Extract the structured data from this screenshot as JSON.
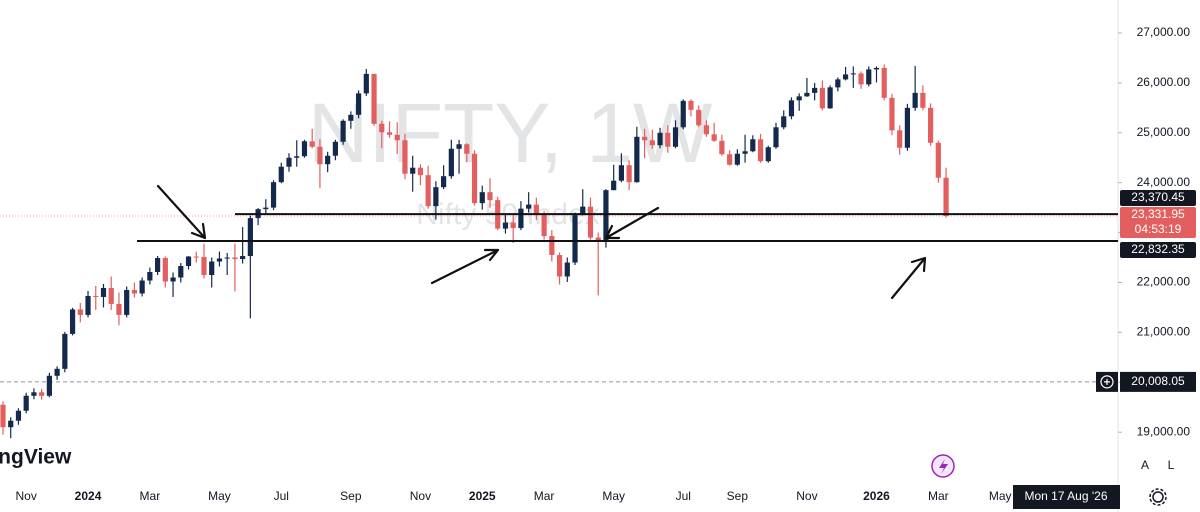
{
  "chart_data": {
    "type": "candlestick",
    "title": "NIFTY, 1W",
    "subtitle": "Nifty 50 Index",
    "brand": "TradingView",
    "categories": [
      null,
      null,
      null,
      "Nov",
      null,
      null,
      null,
      null,
      null,
      null,
      null,
      "2024",
      null,
      null,
      null,
      null,
      null,
      null,
      null,
      "Mar",
      null,
      null,
      null,
      null,
      null,
      null,
      null,
      null,
      "May",
      null,
      null,
      null,
      null,
      null,
      null,
      null,
      "Jul",
      null,
      null,
      null,
      null,
      null,
      null,
      null,
      null,
      "Sep",
      null,
      null,
      null,
      null,
      null,
      null,
      null,
      null,
      "Nov",
      null,
      null,
      null,
      null,
      null,
      null,
      null,
      "2025",
      null,
      null,
      null,
      null,
      null,
      null,
      null,
      "Mar",
      null,
      null,
      null,
      null,
      null,
      null,
      null,
      null,
      "May",
      null,
      null,
      null,
      null,
      null,
      null,
      null,
      null,
      "Jul",
      null,
      null,
      null,
      null,
      null,
      null,
      "Sep",
      null,
      null,
      null,
      null,
      null,
      null,
      null,
      null,
      "Nov",
      null,
      null,
      null,
      null,
      null,
      null,
      null,
      null,
      "2026",
      null,
      null,
      null,
      null,
      null,
      null,
      null,
      "Mar",
      null,
      null,
      null,
      null,
      null,
      null,
      null,
      "May"
    ],
    "open": [
      19550,
      19100,
      19230,
      19430,
      19730,
      19800,
      19730,
      20130,
      20270,
      20970,
      21460,
      21350,
      21730,
      21710,
      21890,
      21570,
      21350,
      21850,
      21780,
      22040,
      22210,
      22490,
      22020,
      22100,
      22330,
      22520,
      22510,
      22150,
      22420,
      22480,
      22500,
      22470,
      22530,
      23290,
      23470,
      23500,
      24010,
      24320,
      24500,
      24530,
      24830,
      24720,
      24370,
      24540,
      24820,
      25240,
      25360,
      25790,
      26180,
      25180,
      25010,
      24960,
      24850,
      24180,
      24300,
      24150,
      23530,
      23910,
      24130,
      24680,
      24770,
      24580,
      23590,
      23810,
      23650,
      23080,
      23200,
      23090,
      23480,
      23560,
      23380,
      22930,
      22550,
      22120,
      22400,
      23350,
      23520,
      22900,
      22830,
      23850,
      24040,
      24350,
      24010,
      24920,
      24850,
      24750,
      25000,
      24720,
      25110,
      25640,
      25460,
      25150,
      24970,
      24840,
      24570,
      24360,
      24580,
      24630,
      24870,
      24430,
      24710,
      25110,
      25330,
      25650,
      25730,
      25800,
      25900,
      25490,
      25910,
      26070,
      26170,
      26190,
      25970,
      26270,
      26300,
      25700,
      25050,
      24700,
      25500,
      25800,
      25500,
      24800,
      24100,
      null,
      null,
      null,
      null,
      null,
      null,
      null
    ],
    "high": [
      19620,
      19300,
      19480,
      19790,
      19880,
      19870,
      20190,
      20320,
      21010,
      21490,
      21590,
      21830,
      21930,
      21970,
      22120,
      21800,
      21920,
      22000,
      22100,
      22300,
      22530,
      22520,
      22200,
      22390,
      22530,
      22620,
      22780,
      22500,
      22620,
      22590,
      22780,
      23110,
      23340,
      23490,
      23670,
      24050,
      24400,
      24590,
      24850,
      24860,
      25080,
      24870,
      24620,
      24860,
      25270,
      25430,
      25850,
      26280,
      26130,
      25240,
      25230,
      25210,
      24980,
      24540,
      24370,
      24340,
      24030,
      24350,
      24860,
      24860,
      24790,
      24650,
      23940,
      24090,
      23720,
      23390,
      23350,
      23630,
      23810,
      23700,
      23430,
      23050,
      22600,
      22500,
      23400,
      23870,
      23700,
      23000,
      23870,
      24360,
      24590,
      24450,
      25120,
      25080,
      25060,
      25100,
      25150,
      25250,
      25670,
      25670,
      25550,
      25250,
      25200,
      24960,
      24650,
      24670,
      24960,
      24950,
      24980,
      24740,
      25200,
      25450,
      25710,
      25790,
      26100,
      26000,
      26050,
      25950,
      26110,
      26320,
      26330,
      26230,
      26330,
      26330,
      26370,
      25780,
      25150,
      25580,
      26340,
      25950,
      25590,
      24840,
      24300,
      null,
      null,
      null,
      null,
      null,
      null,
      null
    ],
    "low": [
      18950,
      18880,
      19150,
      19380,
      19660,
      19650,
      19700,
      20050,
      20200,
      20940,
      21200,
      21300,
      21450,
      21500,
      21450,
      21140,
      21300,
      21700,
      21720,
      21960,
      22150,
      21900,
      21710,
      22000,
      22260,
      22400,
      22080,
      21900,
      22320,
      22150,
      21820,
      22380,
      21280,
      23150,
      23370,
      23450,
      23990,
      24220,
      24320,
      24500,
      24690,
      23890,
      24210,
      24450,
      24760,
      25080,
      25290,
      25740,
      25140,
      24690,
      24900,
      24570,
      24070,
      23820,
      23950,
      23480,
      23260,
      23870,
      24080,
      24180,
      24410,
      23540,
      23460,
      23500,
      23050,
      22980,
      22790,
      23050,
      23400,
      23250,
      22860,
      22420,
      21960,
      22010,
      22350,
      23350,
      22860,
      21740,
      22700,
      23850,
      24010,
      23850,
      24000,
      24490,
      24680,
      24690,
      24600,
      24690,
      25070,
      25330,
      25120,
      24920,
      24820,
      24540,
      24340,
      24340,
      24400,
      24610,
      24400,
      24400,
      24680,
      25070,
      25270,
      25440,
      25720,
      25650,
      25450,
      25480,
      25830,
      26050,
      25900,
      25880,
      25930,
      26010,
      25650,
      24950,
      24560,
      24640,
      25440,
      25450,
      24740,
      24000,
      23300,
      null,
      null,
      null,
      null,
      null,
      null,
      null
    ],
    "close": [
      19100,
      19230,
      19430,
      19730,
      19800,
      19730,
      20130,
      20270,
      20970,
      21460,
      21350,
      21730,
      21710,
      21890,
      21570,
      21350,
      21850,
      21780,
      22040,
      22210,
      22490,
      22020,
      22100,
      22330,
      22520,
      22510,
      22150,
      22420,
      22480,
      22500,
      22470,
      22530,
      23290,
      23470,
      23500,
      24010,
      24320,
      24500,
      24530,
      24830,
      24720,
      24370,
      24540,
      24820,
      25240,
      25360,
      25790,
      26180,
      25180,
      25010,
      24960,
      24850,
      24180,
      24300,
      24150,
      23530,
      23910,
      24130,
      24680,
      24770,
      24580,
      23590,
      23810,
      23650,
      23080,
      23200,
      23090,
      23480,
      23560,
      23380,
      22930,
      22550,
      22120,
      22400,
      23350,
      23520,
      22900,
      22830,
      23850,
      24040,
      24350,
      24010,
      24920,
      24850,
      24750,
      25000,
      24720,
      25110,
      25640,
      25460,
      25150,
      24970,
      24840,
      24570,
      24360,
      24580,
      24630,
      24870,
      24430,
      24710,
      25110,
      25330,
      25650,
      25730,
      25800,
      25900,
      25490,
      25910,
      26070,
      26170,
      26190,
      25970,
      26270,
      26300,
      25700,
      25050,
      24700,
      25500,
      25800,
      25500,
      24800,
      24100,
      23331.95,
      null,
      null,
      null,
      null,
      null,
      null,
      null
    ],
    "up_color": "#142a4c",
    "down_color": "#e35f5f",
    "ylim": [
      18042,
      27661
    ],
    "yticks": [
      {
        "value": 19000,
        "label": "19,000.00"
      },
      {
        "value": 20000,
        "label": "20,000.00"
      },
      {
        "value": 21000,
        "label": "21,000.00"
      },
      {
        "value": 22000,
        "label": "22,000.00"
      },
      {
        "value": 23000,
        "label": "23,000.00"
      },
      {
        "value": 24000,
        "label": "24,000.00"
      },
      {
        "value": 25000,
        "label": "25,000.00"
      },
      {
        "value": 26000,
        "label": "26,000.00"
      },
      {
        "value": 27000,
        "label": "27,000.00"
      }
    ],
    "levels": [
      {
        "value": 23370.45,
        "label": "23,370.45"
      },
      {
        "value": 22832.35,
        "label": "22,832.35"
      }
    ],
    "last_price": {
      "value": 23331.95,
      "label": "23,331.95"
    },
    "countdown": "04:53:19",
    "crosshair": {
      "price": {
        "value": 20008.05,
        "label": "20,008.05"
      },
      "date": "Mon 17 Aug '26"
    }
  },
  "toolbar": {
    "auto": "A",
    "log": "L"
  }
}
